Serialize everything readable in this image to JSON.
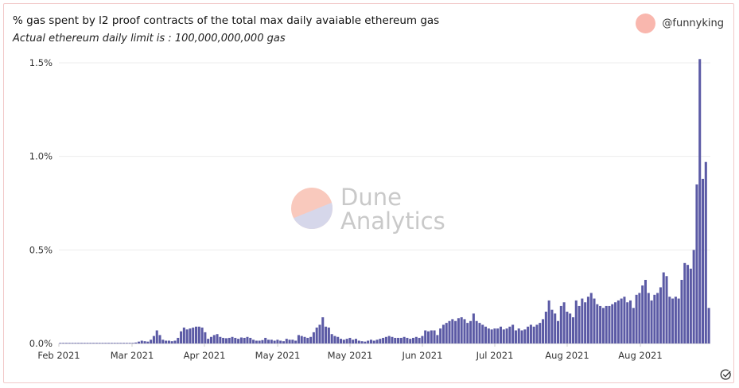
{
  "header": {
    "title": "% gas spent by l2 proof contracts of the total max daily avaiable ethereum gas",
    "subtitle": "Actual ethereum daily limit is : 100,000,000,000 gas"
  },
  "author": {
    "name": "@funnyking",
    "avatar_color": "#f9b7ae"
  },
  "watermark": {
    "line1": "Dune",
    "line2": "Analytics"
  },
  "icons": {
    "status": "check-circle-icon"
  },
  "colors": {
    "bar": "#5b5aa5",
    "grid": "#ececec",
    "axis": "#333333"
  },
  "chart_data": {
    "type": "bar",
    "title": "% gas spent by l2 proof contracts of the total max daily avaiable ethereum gas",
    "subtitle": "Actual ethereum daily limit is : 100,000,000,000 gas",
    "xlabel": "",
    "ylabel": "",
    "x_start": "2021-02-01",
    "x_end": "2021-09-02",
    "x_ticks": [
      "Feb 2021",
      "Mar 2021",
      "Apr 2021",
      "May 2021",
      "May 2021",
      "Jun 2021",
      "Jul 2021",
      "Aug 2021",
      "Aug 2021"
    ],
    "y_ticks": [
      "0.0%",
      "0.5%",
      "1.0%",
      "1.5%"
    ],
    "ylim": [
      0,
      1.5
    ],
    "grid": true,
    "legend": "none",
    "unit": "%",
    "values": [
      0.003,
      0.003,
      0.003,
      0.003,
      0.003,
      0.003,
      0.003,
      0.003,
      0.003,
      0.003,
      0.003,
      0.003,
      0.003,
      0.003,
      0.003,
      0.003,
      0.003,
      0.003,
      0.003,
      0.003,
      0.003,
      0.003,
      0.003,
      0.003,
      0.003,
      0.005,
      0.01,
      0.015,
      0.012,
      0.01,
      0.02,
      0.04,
      0.07,
      0.045,
      0.02,
      0.015,
      0.015,
      0.012,
      0.015,
      0.03,
      0.065,
      0.085,
      0.075,
      0.08,
      0.085,
      0.09,
      0.09,
      0.085,
      0.06,
      0.025,
      0.035,
      0.045,
      0.05,
      0.035,
      0.03,
      0.028,
      0.03,
      0.035,
      0.03,
      0.025,
      0.032,
      0.03,
      0.035,
      0.03,
      0.02,
      0.015,
      0.015,
      0.018,
      0.03,
      0.02,
      0.02,
      0.015,
      0.02,
      0.015,
      0.012,
      0.025,
      0.02,
      0.02,
      0.015,
      0.045,
      0.04,
      0.035,
      0.03,
      0.035,
      0.06,
      0.085,
      0.1,
      0.14,
      0.09,
      0.085,
      0.05,
      0.04,
      0.035,
      0.025,
      0.02,
      0.025,
      0.03,
      0.02,
      0.025,
      0.015,
      0.012,
      0.01,
      0.015,
      0.02,
      0.015,
      0.02,
      0.025,
      0.03,
      0.035,
      0.04,
      0.035,
      0.03,
      0.03,
      0.03,
      0.035,
      0.03,
      0.025,
      0.03,
      0.035,
      0.03,
      0.04,
      0.07,
      0.065,
      0.07,
      0.07,
      0.045,
      0.08,
      0.1,
      0.11,
      0.12,
      0.13,
      0.12,
      0.135,
      0.14,
      0.13,
      0.11,
      0.12,
      0.16,
      0.12,
      0.11,
      0.1,
      0.09,
      0.08,
      0.075,
      0.08,
      0.08,
      0.09,
      0.075,
      0.08,
      0.09,
      0.1,
      0.07,
      0.08,
      0.07,
      0.075,
      0.09,
      0.1,
      0.09,
      0.1,
      0.11,
      0.13,
      0.17,
      0.23,
      0.18,
      0.16,
      0.12,
      0.2,
      0.22,
      0.17,
      0.16,
      0.14,
      0.23,
      0.2,
      0.24,
      0.22,
      0.25,
      0.27,
      0.24,
      0.21,
      0.2,
      0.19,
      0.2,
      0.2,
      0.21,
      0.22,
      0.23,
      0.24,
      0.25,
      0.22,
      0.23,
      0.19,
      0.26,
      0.27,
      0.31,
      0.34,
      0.27,
      0.23,
      0.26,
      0.27,
      0.3,
      0.38,
      0.36,
      0.25,
      0.24,
      0.25,
      0.24,
      0.34,
      0.43,
      0.42,
      0.4,
      0.5,
      0.85,
      1.52,
      0.88,
      0.97,
      0.19
    ]
  }
}
